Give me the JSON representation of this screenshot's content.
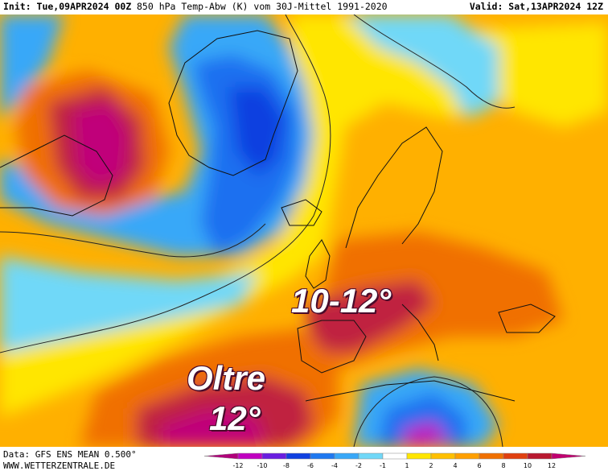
{
  "header": {
    "init": "Init: Tue,09APR2024 00Z",
    "title": "850 hPa Temp-Abw (K) vom 30J-Mittel 1991-2020",
    "valid": "Valid: Sat,13APR2024 12Z"
  },
  "annotations": {
    "spain": "10-12°",
    "atlantic_line1": "Oltre",
    "atlantic_line2": "12°"
  },
  "footer": {
    "data_source": "Data: GFS ENS MEAN 0.500°",
    "website": "WWW.WETTERZENTRALE.DE"
  },
  "legend": {
    "ticks": [
      "-12",
      "-10",
      "-8",
      "-6",
      "-4",
      "-2",
      "-1",
      "1",
      "2",
      "4",
      "6",
      "8",
      "10",
      "12"
    ],
    "colors": [
      "#b0007a",
      "#c000c0",
      "#6a1ee0",
      "#1040e0",
      "#1e78f0",
      "#38a8f8",
      "#70d8f8",
      "#ffffff",
      "#ffe600",
      "#ffc000",
      "#ffa000",
      "#f07000",
      "#e04010",
      "#b81830",
      "#c00070"
    ]
  },
  "colors": {
    "neutral": "#ffffff",
    "warm_weak": "#ffe600",
    "warm_mid": "#ffb000",
    "warm_strong": "#f07000",
    "hot": "#c02040",
    "very_hot": "#c0007a",
    "cold_weak": "#70d8f8",
    "cold_mid": "#38a8f8",
    "cold_strong": "#1e6ff0",
    "very_cold": "#c000c0"
  }
}
